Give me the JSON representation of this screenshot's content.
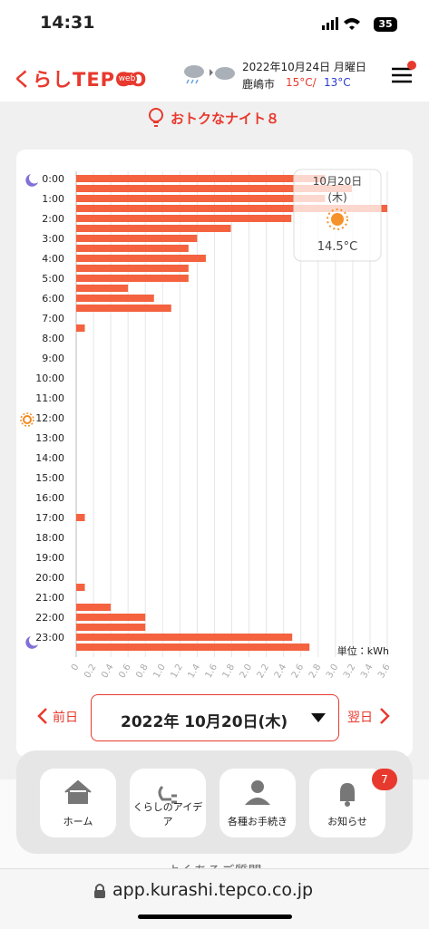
{
  "status_bar": {
    "time": "14:31",
    "battery": "35"
  },
  "header": {
    "logo": "くらしTEPCO",
    "logo_badge": "web",
    "date": "2022年10月24日 月曜日",
    "city": "鹿嶋市",
    "high": "15°C/",
    "low": "13°C"
  },
  "banner": "おトクなナイト８",
  "chart_data": {
    "type": "bar",
    "orientation": "horizontal",
    "categories": [
      "0:00",
      null,
      "1:00",
      null,
      "2:00",
      null,
      "3:00",
      null,
      "4:00",
      null,
      "5:00",
      null,
      "6:00",
      null,
      "7:00",
      null,
      "8:00",
      null,
      "9:00",
      null,
      "10:00",
      null,
      "11:00",
      null,
      "12:00",
      null,
      "13:00",
      null,
      "14:00",
      null,
      "15:00",
      null,
      "16:00",
      null,
      "17:00",
      null,
      "18:00",
      null,
      "19:00",
      null,
      "20:00",
      null,
      "21:00",
      null,
      "22:00",
      null,
      "23:00",
      null
    ],
    "values": [
      2.88,
      3.19,
      2.88,
      3.6,
      2.49,
      1.79,
      1.4,
      1.3,
      1.5,
      1.3,
      1.3,
      0.6,
      0.9,
      1.1,
      0,
      0.1,
      0,
      0,
      0,
      0,
      0,
      0,
      0,
      0,
      0,
      0,
      0,
      0,
      0,
      0,
      0,
      0,
      0,
      0,
      0.1,
      0,
      0,
      0,
      0,
      0,
      0,
      0.1,
      0,
      0.4,
      0.8,
      0.8,
      2.5,
      2.7
    ],
    "color": "#f4623f",
    "xlim": [
      0,
      3.6
    ],
    "xticks": [
      0,
      0.2,
      0.4,
      0.6,
      0.8,
      {
        "value": 1,
        "label": "1.0"
      },
      1.2,
      1.4,
      1.6,
      1.8,
      {
        "value": 2,
        "label": "2.0"
      },
      2.2,
      2.4,
      2.6,
      2.8,
      {
        "value": 3,
        "label": "3.0"
      },
      3.2,
      3.4,
      3.6
    ],
    "grid": true,
    "tooltip": {
      "date": "10月20日",
      "weekday": "(木)",
      "temperature": "14.5°C"
    },
    "unit_label": "単位：kWh"
  },
  "date_nav": {
    "prev": "前日",
    "selected": "2022年 10月20日(木)",
    "next": "翌日"
  },
  "nav": {
    "items": [
      "ホーム",
      "くらしのアイデア",
      "各種お手続き",
      "お知らせ"
    ],
    "badge": 7
  },
  "footer_link": "よくあるご質問",
  "url": "app.kurashi.tepco.co.jp"
}
